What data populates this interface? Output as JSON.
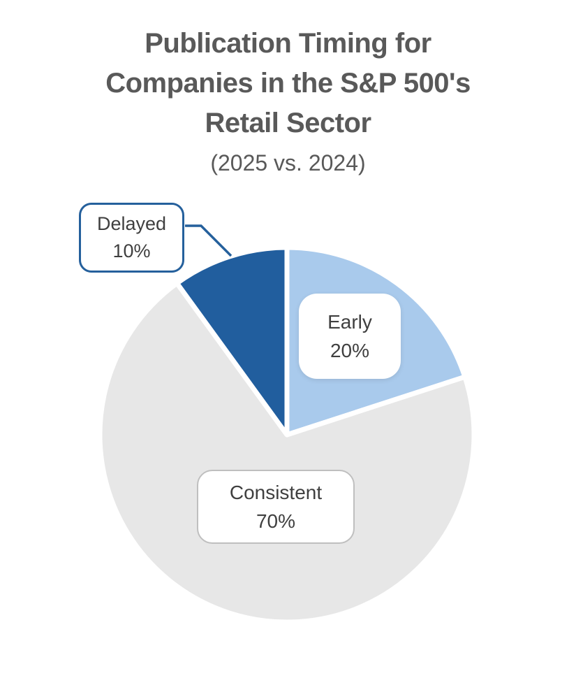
{
  "title": {
    "lines": [
      "Publication Timing for",
      "Companies in the S&P 500's",
      "Retail Sector"
    ],
    "subtitle": "(2025 vs. 2024)"
  },
  "chart_data": {
    "type": "pie",
    "title": "Publication Timing for Companies in the S&P 500's Retail Sector",
    "subtitle": "(2025 vs. 2024)",
    "start_angle_deg": 0,
    "direction": "clockwise",
    "slices": [
      {
        "label": "Early",
        "value": 20,
        "pct_label": "20%",
        "color": "#A9CAEC",
        "label_style": "white-rounded-box"
      },
      {
        "label": "Consistent",
        "value": 70,
        "pct_label": "70%",
        "color": "#E7E7E7",
        "label_style": "white-rounded-box-gray-border"
      },
      {
        "label": "Delayed",
        "value": 10,
        "pct_label": "10%",
        "color": "#215E9E",
        "label_style": "callout-blue-border"
      }
    ],
    "separator_color": "#FFFFFF",
    "callout_line_color": "#25609C",
    "title_color": "#595959",
    "label_text_color": "#3F3F3F",
    "legend": "none",
    "background": "#FFFFFF"
  }
}
